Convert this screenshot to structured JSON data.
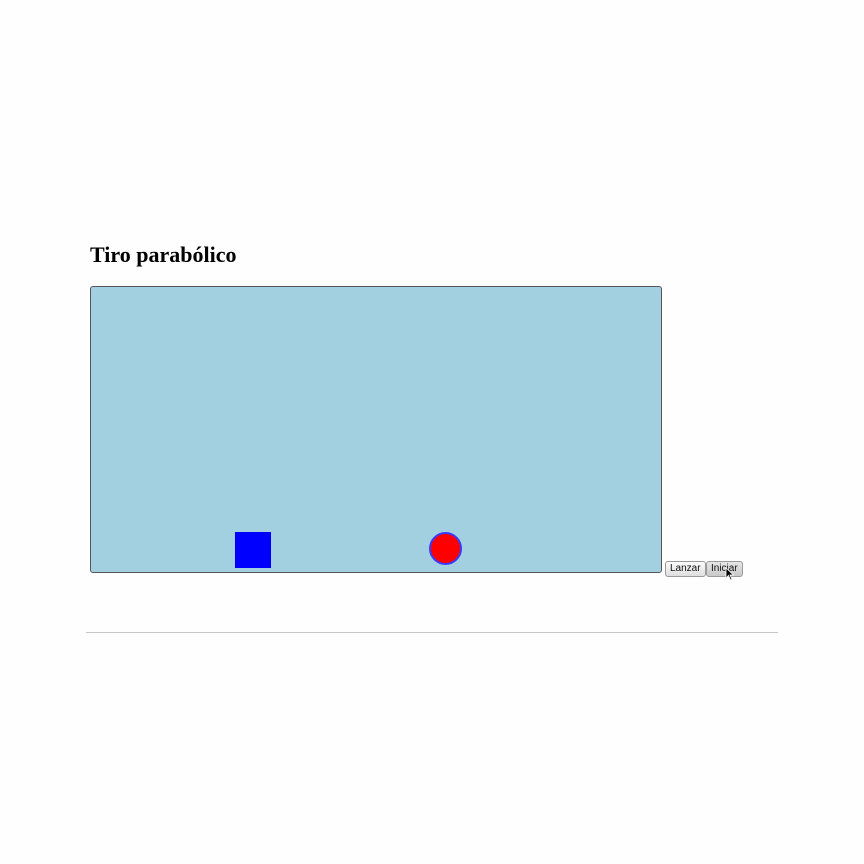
{
  "page": {
    "title": "Tiro parabólico"
  },
  "stage": {
    "background_color": "#a3d0e1",
    "target": {
      "shape": "square",
      "color": "#0000ff"
    },
    "projectile": {
      "shape": "circle",
      "fill_color": "#ff0000",
      "border_color": "#3a3aff"
    }
  },
  "controls": {
    "launch_label": "Lanzar",
    "start_label": "Iniciar"
  },
  "cursor": {
    "icon": "arrow-cursor-icon"
  }
}
